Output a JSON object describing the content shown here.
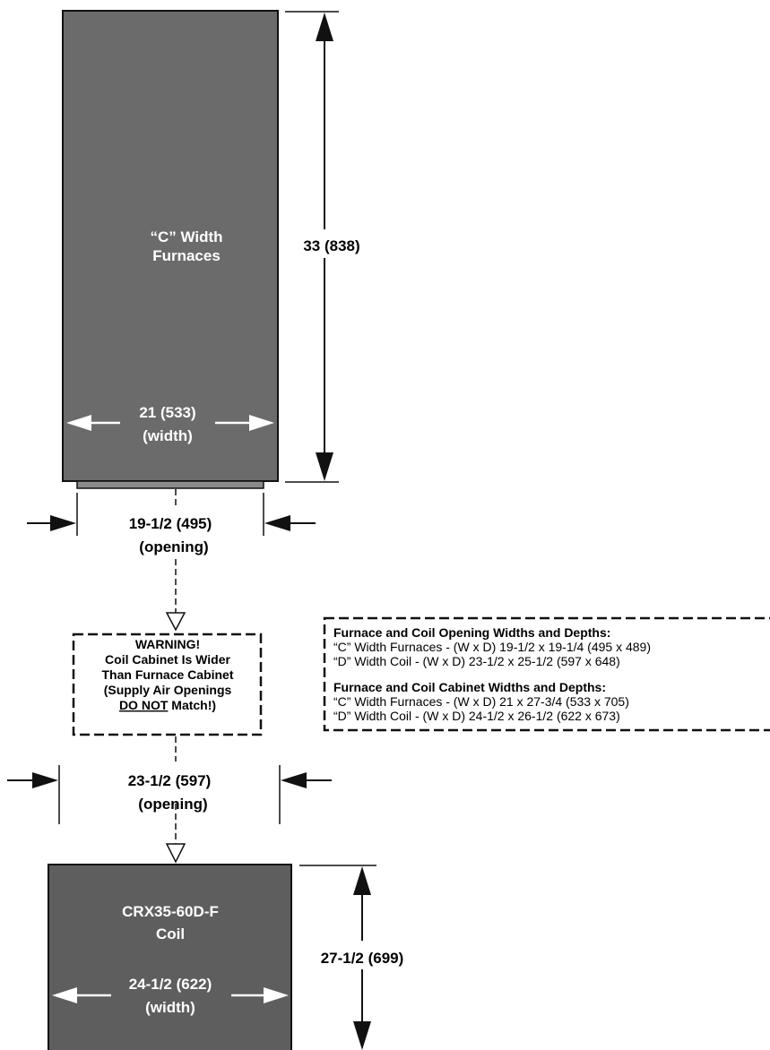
{
  "colors": {
    "furnace_fill": "#6b6b6b",
    "coil_fill": "#5e5e5e",
    "line": "#111111",
    "arrow_white": "#ffffff"
  },
  "furnace": {
    "label_line1": "“C” Width",
    "label_line2": "Furnaces",
    "height_label": "33 (838)",
    "width_label": "21 (533)",
    "width_sub": "(width)"
  },
  "furnace_opening": {
    "label": "19-1/2 (495)",
    "sub": "(opening)"
  },
  "warning": {
    "line1": "WARNING!",
    "line2": "Coil Cabinet Is Wider",
    "line3": "Than Furnace Cabinet",
    "line4": "(Supply Air Openings",
    "line5_underlined": "DO NOT",
    "line5_rest": " Match!)"
  },
  "info_box": {
    "heading1": "Furnace and Coil Opening Widths and Depths:",
    "row1": "“C” Width Furnaces - (W x D) 19-1/2 x 19-1/4 (495 x 489)",
    "row2": "“D” Width Coil - (W x D) 23-1/2 x 25-1/2 (597 x 648)",
    "heading2": "Furnace and Coil Cabinet Widths and Depths:",
    "row3": "“C” Width Furnaces - (W x D) 21 x 27-3/4 (533 x 705)",
    "row4": "“D” Width Coil - (W x D) 24-1/2 x 26-1/2 (622 x 673)"
  },
  "coil_opening": {
    "label": "23-1/2 (597)",
    "sub": "(opening)"
  },
  "coil": {
    "label_line1": "CRX35-60D-F",
    "label_line2": "Coil",
    "height_label": "27-1/2 (699)",
    "width_label": "24-1/2 (622)",
    "width_sub": "(width)"
  }
}
